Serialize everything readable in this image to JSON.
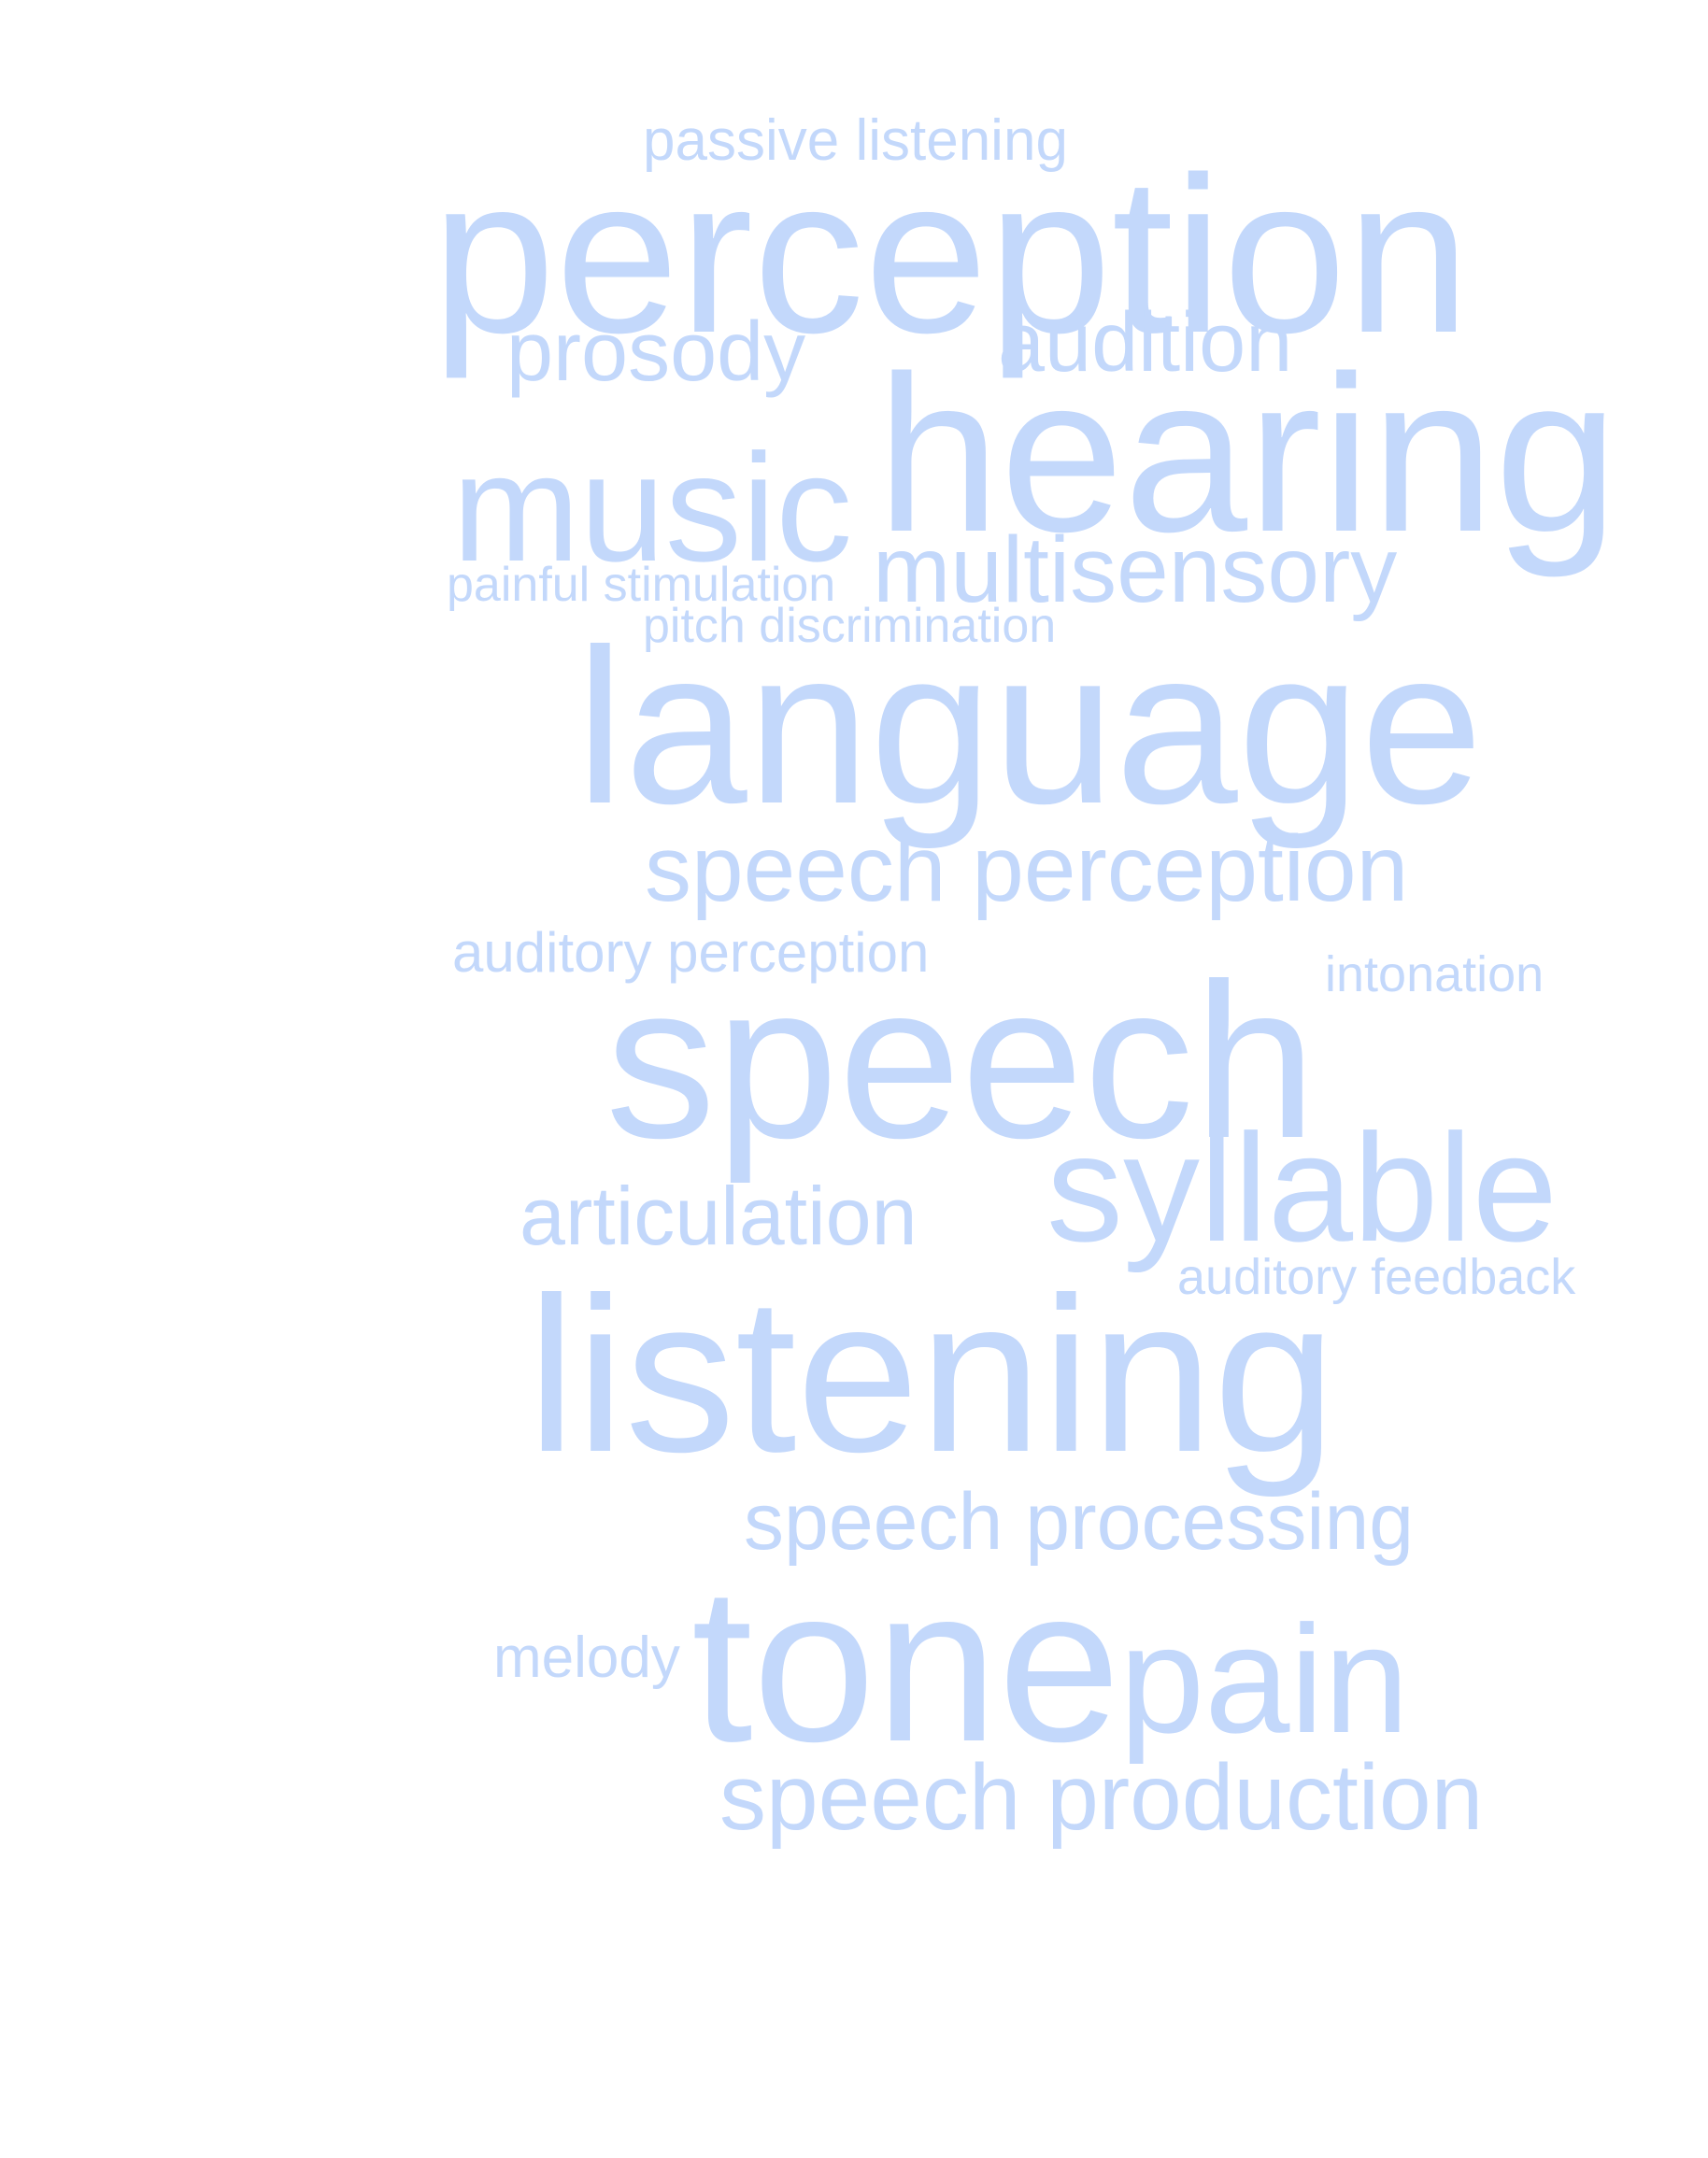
{
  "style": {
    "word_color": "#c3d8fb",
    "background": "#ffffff"
  },
  "words": {
    "passive_listening": "passive listening",
    "perception": "perception",
    "prosody": "prosody",
    "audition": "audition",
    "hearing": "hearing",
    "music": "music",
    "painful_stimulation": "painful stimulation",
    "multisensory": "multisensory",
    "pitch_discrimination": "pitch discrimination",
    "language": "language",
    "speech_perception": "speech perception",
    "auditory_perception": "auditory perception",
    "intonation": "intonation",
    "speech": "speech",
    "syllable": "syllable",
    "articulation": "articulation",
    "auditory_feedback": "auditory feedback",
    "listening": "listening",
    "speech_processing": "speech processing",
    "melody": "melody",
    "tone": "tone",
    "pain": "pain",
    "speech_production": "speech production"
  }
}
